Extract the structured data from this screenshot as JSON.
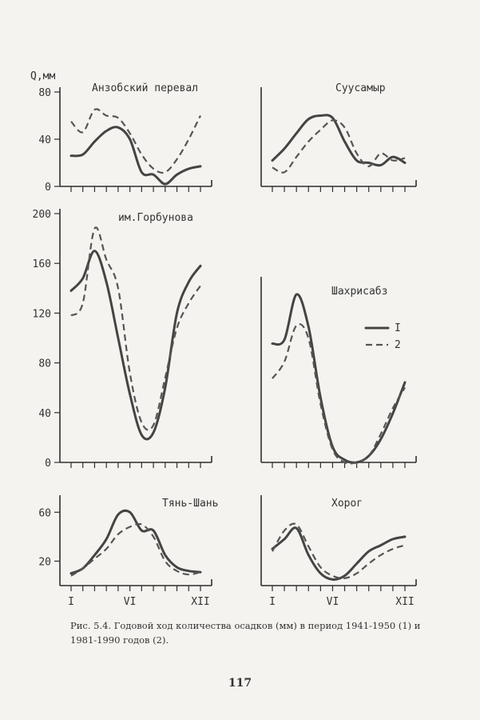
{
  "figure": {
    "y_unit_label": "Q,мм",
    "caption": "Рис. 5.4. Годовой ход количества осадков (мм) в период 1941-1950 (1) и 1981-1990 годов (2).",
    "page_number": "117",
    "legend": {
      "series1": "I",
      "series2": "2"
    }
  },
  "chart_data": [
    {
      "type": "line",
      "title": "Анзобский перевал",
      "x": [
        1,
        2,
        3,
        4,
        5,
        6,
        7,
        8,
        9,
        10,
        11,
        12
      ],
      "ylim": [
        0,
        80
      ],
      "yticks": [
        0,
        40,
        80
      ],
      "xticklabels": [],
      "series": [
        {
          "name": "I",
          "values": [
            26,
            27,
            38,
            47,
            50,
            40,
            12,
            10,
            2,
            10,
            15,
            17
          ]
        },
        {
          "name": "2",
          "values": [
            55,
            46,
            65,
            60,
            58,
            45,
            27,
            15,
            12,
            23,
            40,
            60
          ]
        }
      ]
    },
    {
      "type": "line",
      "title": "Суусамыр",
      "x": [
        1,
        2,
        3,
        4,
        5,
        6,
        7,
        8,
        9,
        10,
        11,
        12
      ],
      "ylim": [
        0,
        80
      ],
      "yticks": [],
      "xticklabels": [],
      "series": [
        {
          "name": "I",
          "values": [
            22,
            32,
            45,
            57,
            60,
            58,
            38,
            22,
            20,
            18,
            25,
            20
          ]
        },
        {
          "name": "2",
          "values": [
            16,
            12,
            25,
            38,
            48,
            56,
            50,
            28,
            17,
            28,
            22,
            24
          ]
        }
      ]
    },
    {
      "type": "line",
      "title": "им.Горбунова",
      "x": [
        1,
        2,
        3,
        4,
        5,
        6,
        7,
        8,
        9,
        10,
        11,
        12
      ],
      "ylim": [
        0,
        200
      ],
      "yticks": [
        0,
        40,
        80,
        120,
        160,
        200
      ],
      "xticklabels": [],
      "series": [
        {
          "name": "I",
          "values": [
            138,
            148,
            170,
            145,
            100,
            55,
            22,
            24,
            60,
            120,
            145,
            158
          ]
        },
        {
          "name": "2",
          "values": [
            118,
            128,
            188,
            163,
            140,
            72,
            32,
            30,
            68,
            108,
            128,
            142
          ]
        }
      ]
    },
    {
      "type": "line",
      "title": "Шахрисабз",
      "x": [
        1,
        2,
        3,
        4,
        5,
        6,
        7,
        8,
        9,
        10,
        11,
        12
      ],
      "ylim": [
        0,
        140
      ],
      "yticks": [],
      "xticklabels": [],
      "series": [
        {
          "name": "I",
          "values": [
            92,
            95,
            130,
            105,
            50,
            12,
            2,
            0,
            5,
            18,
            38,
            62
          ]
        },
        {
          "name": "2",
          "values": [
            65,
            78,
            106,
            96,
            45,
            10,
            0,
            0,
            5,
            22,
            42,
            58
          ]
        }
      ]
    },
    {
      "type": "line",
      "title": "Тянь-Шань",
      "x": [
        1,
        2,
        3,
        4,
        5,
        6,
        7,
        8,
        9,
        10,
        11,
        12
      ],
      "ylim": [
        0,
        70
      ],
      "yticks": [
        20,
        60
      ],
      "xticklabels": [
        "I",
        "VI",
        "XII"
      ],
      "series": [
        {
          "name": "I",
          "values": [
            10,
            14,
            25,
            38,
            58,
            60,
            45,
            45,
            25,
            15,
            12,
            11
          ]
        },
        {
          "name": "2",
          "values": [
            8,
            14,
            22,
            30,
            42,
            48,
            50,
            40,
            20,
            12,
            9,
            11
          ]
        }
      ]
    },
    {
      "type": "line",
      "title": "Хорог",
      "x": [
        1,
        2,
        3,
        4,
        5,
        6,
        7,
        8,
        9,
        10,
        11,
        12
      ],
      "ylim": [
        0,
        70
      ],
      "yticks": [],
      "xticklabels": [
        "I",
        "VI",
        "XII"
      ],
      "series": [
        {
          "name": "I",
          "values": [
            30,
            38,
            47,
            25,
            10,
            5,
            8,
            18,
            28,
            33,
            38,
            40
          ]
        },
        {
          "name": "2",
          "values": [
            28,
            45,
            50,
            32,
            15,
            8,
            6,
            10,
            18,
            25,
            30,
            33
          ]
        }
      ]
    }
  ]
}
